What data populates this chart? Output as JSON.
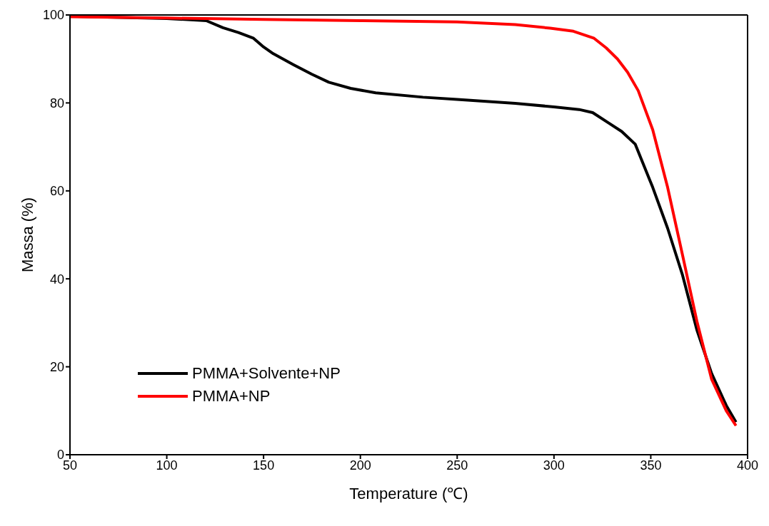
{
  "chart_data": {
    "type": "line",
    "xlabel": "Temperature (℃)",
    "ylabel": "Massa (%)",
    "xlim": [
      50,
      400
    ],
    "ylim": [
      0,
      100
    ],
    "xticks": [
      50,
      100,
      150,
      200,
      250,
      300,
      350,
      400
    ],
    "yticks": [
      0,
      20,
      40,
      60,
      80,
      100
    ],
    "grid": false,
    "legend": "bottom left",
    "marker": "none",
    "line_style": "solid",
    "series": [
      {
        "name": "PMMA+Solvente+NP",
        "color": "#000000",
        "x": [
          50,
          100,
          120.4,
          129,
          137,
          144.8,
          149.5,
          155,
          165.4,
          175,
          183.7,
          195,
          207.9,
          232.3,
          250,
          280,
          300,
          313,
          320,
          328,
          335,
          342,
          351,
          358.7,
          366.3,
          373.8,
          381.4,
          389,
          394
        ],
        "values": [
          99.7,
          99.2,
          98.7,
          97.1,
          96,
          94.7,
          92.9,
          91.2,
          88.7,
          86.5,
          84.7,
          83.3,
          82.3,
          81.3,
          80.8,
          79.9,
          79.1,
          78.5,
          77.8,
          75.5,
          73.5,
          70.6,
          60.8,
          51.5,
          41,
          28.4,
          18.5,
          11.2,
          7.4
        ]
      },
      {
        "name": "PMMA+NP",
        "color": "#ff0000",
        "x": [
          50,
          100,
          150,
          200,
          250,
          280,
          298,
          310,
          320.7,
          327,
          332.8,
          338,
          343.5,
          351,
          358.7,
          366.3,
          373.8,
          381.4,
          389,
          394
        ],
        "values": [
          99.6,
          99.3,
          99,
          98.7,
          98.4,
          97.8,
          97,
          96.3,
          94.7,
          92.5,
          90,
          87,
          82.8,
          73.9,
          60.8,
          45.6,
          30.4,
          17.2,
          10,
          6.6
        ]
      }
    ]
  }
}
